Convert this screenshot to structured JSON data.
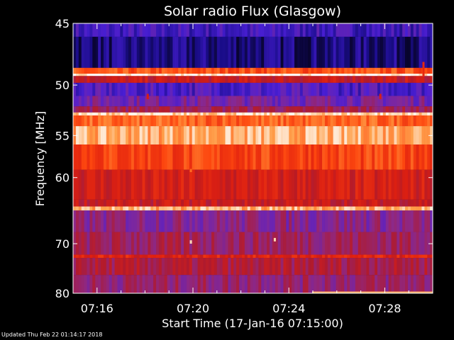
{
  "chart_data": {
    "type": "heatmap",
    "title": "Solar radio Flux (Glasgow)",
    "xlabel": "Start Time (17-Jan-16 07:15:00)",
    "ylabel": "Frequency [MHz]",
    "x_ticks": [
      "07:16",
      "07:20",
      "07:24",
      "07:28"
    ],
    "x_tick_minutes": [
      16,
      20,
      24,
      28
    ],
    "xlim_minutes": [
      15,
      30
    ],
    "y_ticks": [
      45,
      50,
      55,
      60,
      70,
      80
    ],
    "ylim": [
      45,
      80
    ],
    "y_scale": "reciprocal",
    "grid": false,
    "legend": "none",
    "colormap": [
      "#000000",
      "#1a0d8a",
      "#4b1fd6",
      "#8a2a8f",
      "#b01a2a",
      "#e0200f",
      "#ff4a10",
      "#ff9a40",
      "#ffffff"
    ],
    "bands": [
      {
        "from": 45.0,
        "to": 46.0,
        "level": 0.22
      },
      {
        "from": 46.0,
        "to": 48.5,
        "level": 0.12
      },
      {
        "from": 48.5,
        "to": 49.0,
        "level": 0.75
      },
      {
        "from": 49.0,
        "to": 49.2,
        "level": 1.0
      },
      {
        "from": 49.2,
        "to": 49.8,
        "level": 0.55
      },
      {
        "from": 49.8,
        "to": 51.0,
        "level": 0.25
      },
      {
        "from": 51.0,
        "to": 52.0,
        "level": 0.34
      },
      {
        "from": 52.0,
        "to": 52.6,
        "level": 0.45
      },
      {
        "from": 52.6,
        "to": 52.9,
        "level": 0.95
      },
      {
        "from": 52.9,
        "to": 54.0,
        "level": 0.78
      },
      {
        "from": 54.0,
        "to": 56.0,
        "level": 0.9
      },
      {
        "from": 56.0,
        "to": 59.0,
        "level": 0.72
      },
      {
        "from": 59.0,
        "to": 63.0,
        "level": 0.58
      },
      {
        "from": 63.0,
        "to": 64.0,
        "level": 0.55
      },
      {
        "from": 64.0,
        "to": 64.6,
        "level": 0.9
      },
      {
        "from": 64.6,
        "to": 68.0,
        "level": 0.38
      },
      {
        "from": 68.0,
        "to": 72.0,
        "level": 0.44
      },
      {
        "from": 72.0,
        "to": 72.6,
        "level": 0.62
      },
      {
        "from": 72.6,
        "to": 76.0,
        "level": 0.48
      },
      {
        "from": 76.0,
        "to": 80.0,
        "level": 0.42
      }
    ],
    "bursts": [
      {
        "minute": 18.1,
        "from": 50.8,
        "to": 51.3,
        "level": 0.6
      },
      {
        "minute": 27.8,
        "from": 50.8,
        "to": 51.3,
        "level": 0.6
      },
      {
        "minute": 29.6,
        "from": 48.0,
        "to": 49.2,
        "level": 0.65
      },
      {
        "minute": 19.9,
        "from": 58.9,
        "to": 59.3,
        "level": 0.8
      },
      {
        "minute": 19.9,
        "from": 69.4,
        "to": 70.0,
        "level": 0.95
      },
      {
        "minute": 23.4,
        "from": 69.0,
        "to": 69.6,
        "level": 0.95
      },
      {
        "minute": 25.0,
        "from": 79.6,
        "to": 80.0,
        "level": 0.9
      },
      {
        "minute": 26.0,
        "from": 79.6,
        "to": 80.0,
        "level": 0.9
      },
      {
        "minute": 27.0,
        "from": 79.6,
        "to": 80.0,
        "level": 0.9
      },
      {
        "minute": 28.0,
        "from": 79.6,
        "to": 80.0,
        "level": 0.9
      },
      {
        "minute": 29.0,
        "from": 79.6,
        "to": 80.0,
        "level": 0.9
      }
    ]
  },
  "footer": {
    "updated": "Updated Thu Feb 22 01:14:17 2018"
  }
}
